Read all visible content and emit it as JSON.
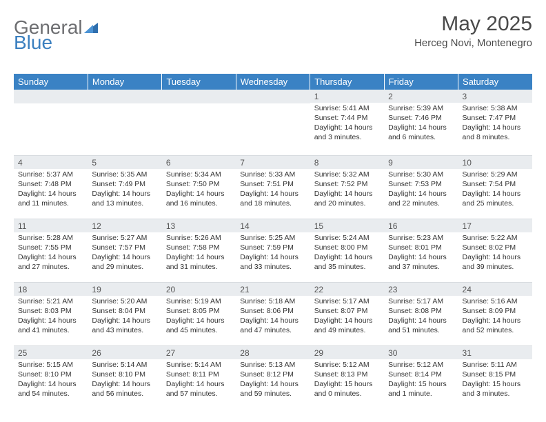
{
  "brand": {
    "part1": "General",
    "part2": "Blue"
  },
  "title": "May 2025",
  "location": "Herceg Novi, Montenegro",
  "colors": {
    "header_bg": "#3a82c4",
    "header_text": "#ffffff",
    "band_bg": "#e9ecef",
    "text": "#333333",
    "brand_gray": "#6d6e71",
    "brand_blue": "#3a7fbf"
  },
  "day_headers": [
    "Sunday",
    "Monday",
    "Tuesday",
    "Wednesday",
    "Thursday",
    "Friday",
    "Saturday"
  ],
  "weeks": [
    [
      {
        "n": "",
        "sunrise": "",
        "sunset": "",
        "daylight": ""
      },
      {
        "n": "",
        "sunrise": "",
        "sunset": "",
        "daylight": ""
      },
      {
        "n": "",
        "sunrise": "",
        "sunset": "",
        "daylight": ""
      },
      {
        "n": "",
        "sunrise": "",
        "sunset": "",
        "daylight": ""
      },
      {
        "n": "1",
        "sunrise": "Sunrise: 5:41 AM",
        "sunset": "Sunset: 7:44 PM",
        "daylight": "Daylight: 14 hours and 3 minutes."
      },
      {
        "n": "2",
        "sunrise": "Sunrise: 5:39 AM",
        "sunset": "Sunset: 7:46 PM",
        "daylight": "Daylight: 14 hours and 6 minutes."
      },
      {
        "n": "3",
        "sunrise": "Sunrise: 5:38 AM",
        "sunset": "Sunset: 7:47 PM",
        "daylight": "Daylight: 14 hours and 8 minutes."
      }
    ],
    [
      {
        "n": "4",
        "sunrise": "Sunrise: 5:37 AM",
        "sunset": "Sunset: 7:48 PM",
        "daylight": "Daylight: 14 hours and 11 minutes."
      },
      {
        "n": "5",
        "sunrise": "Sunrise: 5:35 AM",
        "sunset": "Sunset: 7:49 PM",
        "daylight": "Daylight: 14 hours and 13 minutes."
      },
      {
        "n": "6",
        "sunrise": "Sunrise: 5:34 AM",
        "sunset": "Sunset: 7:50 PM",
        "daylight": "Daylight: 14 hours and 16 minutes."
      },
      {
        "n": "7",
        "sunrise": "Sunrise: 5:33 AM",
        "sunset": "Sunset: 7:51 PM",
        "daylight": "Daylight: 14 hours and 18 minutes."
      },
      {
        "n": "8",
        "sunrise": "Sunrise: 5:32 AM",
        "sunset": "Sunset: 7:52 PM",
        "daylight": "Daylight: 14 hours and 20 minutes."
      },
      {
        "n": "9",
        "sunrise": "Sunrise: 5:30 AM",
        "sunset": "Sunset: 7:53 PM",
        "daylight": "Daylight: 14 hours and 22 minutes."
      },
      {
        "n": "10",
        "sunrise": "Sunrise: 5:29 AM",
        "sunset": "Sunset: 7:54 PM",
        "daylight": "Daylight: 14 hours and 25 minutes."
      }
    ],
    [
      {
        "n": "11",
        "sunrise": "Sunrise: 5:28 AM",
        "sunset": "Sunset: 7:55 PM",
        "daylight": "Daylight: 14 hours and 27 minutes."
      },
      {
        "n": "12",
        "sunrise": "Sunrise: 5:27 AM",
        "sunset": "Sunset: 7:57 PM",
        "daylight": "Daylight: 14 hours and 29 minutes."
      },
      {
        "n": "13",
        "sunrise": "Sunrise: 5:26 AM",
        "sunset": "Sunset: 7:58 PM",
        "daylight": "Daylight: 14 hours and 31 minutes."
      },
      {
        "n": "14",
        "sunrise": "Sunrise: 5:25 AM",
        "sunset": "Sunset: 7:59 PM",
        "daylight": "Daylight: 14 hours and 33 minutes."
      },
      {
        "n": "15",
        "sunrise": "Sunrise: 5:24 AM",
        "sunset": "Sunset: 8:00 PM",
        "daylight": "Daylight: 14 hours and 35 minutes."
      },
      {
        "n": "16",
        "sunrise": "Sunrise: 5:23 AM",
        "sunset": "Sunset: 8:01 PM",
        "daylight": "Daylight: 14 hours and 37 minutes."
      },
      {
        "n": "17",
        "sunrise": "Sunrise: 5:22 AM",
        "sunset": "Sunset: 8:02 PM",
        "daylight": "Daylight: 14 hours and 39 minutes."
      }
    ],
    [
      {
        "n": "18",
        "sunrise": "Sunrise: 5:21 AM",
        "sunset": "Sunset: 8:03 PM",
        "daylight": "Daylight: 14 hours and 41 minutes."
      },
      {
        "n": "19",
        "sunrise": "Sunrise: 5:20 AM",
        "sunset": "Sunset: 8:04 PM",
        "daylight": "Daylight: 14 hours and 43 minutes."
      },
      {
        "n": "20",
        "sunrise": "Sunrise: 5:19 AM",
        "sunset": "Sunset: 8:05 PM",
        "daylight": "Daylight: 14 hours and 45 minutes."
      },
      {
        "n": "21",
        "sunrise": "Sunrise: 5:18 AM",
        "sunset": "Sunset: 8:06 PM",
        "daylight": "Daylight: 14 hours and 47 minutes."
      },
      {
        "n": "22",
        "sunrise": "Sunrise: 5:17 AM",
        "sunset": "Sunset: 8:07 PM",
        "daylight": "Daylight: 14 hours and 49 minutes."
      },
      {
        "n": "23",
        "sunrise": "Sunrise: 5:17 AM",
        "sunset": "Sunset: 8:08 PM",
        "daylight": "Daylight: 14 hours and 51 minutes."
      },
      {
        "n": "24",
        "sunrise": "Sunrise: 5:16 AM",
        "sunset": "Sunset: 8:09 PM",
        "daylight": "Daylight: 14 hours and 52 minutes."
      }
    ],
    [
      {
        "n": "25",
        "sunrise": "Sunrise: 5:15 AM",
        "sunset": "Sunset: 8:10 PM",
        "daylight": "Daylight: 14 hours and 54 minutes."
      },
      {
        "n": "26",
        "sunrise": "Sunrise: 5:14 AM",
        "sunset": "Sunset: 8:10 PM",
        "daylight": "Daylight: 14 hours and 56 minutes."
      },
      {
        "n": "27",
        "sunrise": "Sunrise: 5:14 AM",
        "sunset": "Sunset: 8:11 PM",
        "daylight": "Daylight: 14 hours and 57 minutes."
      },
      {
        "n": "28",
        "sunrise": "Sunrise: 5:13 AM",
        "sunset": "Sunset: 8:12 PM",
        "daylight": "Daylight: 14 hours and 59 minutes."
      },
      {
        "n": "29",
        "sunrise": "Sunrise: 5:12 AM",
        "sunset": "Sunset: 8:13 PM",
        "daylight": "Daylight: 15 hours and 0 minutes."
      },
      {
        "n": "30",
        "sunrise": "Sunrise: 5:12 AM",
        "sunset": "Sunset: 8:14 PM",
        "daylight": "Daylight: 15 hours and 1 minute."
      },
      {
        "n": "31",
        "sunrise": "Sunrise: 5:11 AM",
        "sunset": "Sunset: 8:15 PM",
        "daylight": "Daylight: 15 hours and 3 minutes."
      }
    ]
  ]
}
